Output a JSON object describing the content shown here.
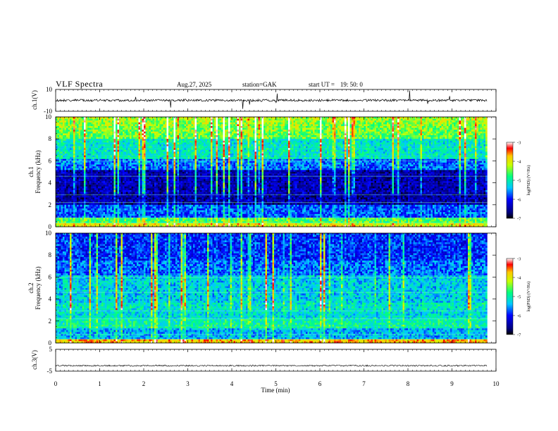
{
  "header": {
    "title": "VLF  Spectra",
    "date": "Aug.27, 2025",
    "station": "station=GAK",
    "start_label": "start  UT  =",
    "start_time": "19: 50: 0"
  },
  "chart_data": [
    {
      "type": "line",
      "panel": "ch1-waveform",
      "ylabel": "ch.1(V)",
      "ylim": [
        -10,
        10
      ],
      "yticks": [
        "10",
        "-10"
      ],
      "xlim": [
        0,
        10
      ],
      "baseline_value": 0,
      "note": "noisy waveform near 0 V with occasional spikes"
    },
    {
      "type": "heatmap",
      "panel": "ch1-spectrogram",
      "ylabel_line1": "ch.1",
      "ylabel_line2": "Frequency (kHz)",
      "ylim": [
        0,
        10
      ],
      "yticks": [
        "0",
        "2",
        "4",
        "6",
        "8",
        "10"
      ],
      "xlim": [
        0,
        10
      ],
      "data_xmax": 9.8,
      "colorbar": {
        "label": "log(PSD) (V²/Hz)",
        "range": [
          -7,
          -3
        ],
        "ticks": [
          "-3",
          "-4",
          "-5",
          "-6",
          "-7"
        ]
      }
    },
    {
      "type": "heatmap",
      "panel": "ch2-spectrogram",
      "ylabel_line1": "ch.2",
      "ylabel_line2": "Frequency (kHz)",
      "ylim": [
        0,
        10
      ],
      "yticks": [
        "0",
        "2",
        "4",
        "6",
        "8",
        "10"
      ],
      "xlim": [
        0,
        10
      ],
      "data_xmax": 9.8,
      "colorbar": {
        "label": "log(PSD) (V²/Hz)",
        "range": [
          -7,
          -3
        ],
        "ticks": [
          "-3",
          "-4",
          "-5",
          "-6",
          "-7"
        ]
      }
    },
    {
      "type": "line",
      "panel": "ch3-waveform",
      "ylabel": "ch.3(V)",
      "ylim": [
        -5,
        5
      ],
      "yticks": [
        "5",
        "-5"
      ],
      "xlim": [
        0,
        10
      ],
      "baseline_value": -2.5,
      "note": "dense band near -2.5 V"
    }
  ],
  "x_axis": {
    "label": "Time  (min)",
    "range": [
      0,
      10
    ],
    "ticks": [
      "0",
      "1",
      "2",
      "3",
      "4",
      "5",
      "6",
      "7",
      "8",
      "9",
      "10"
    ]
  }
}
